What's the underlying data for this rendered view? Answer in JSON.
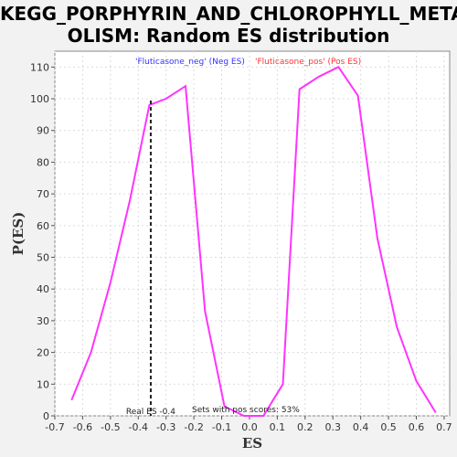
{
  "title": {
    "line1": "KEGG_PORPHYRIN_AND_CHLOROPHYLL_METAB",
    "line2": "OLISM: Random ES distribution"
  },
  "chart_data": {
    "type": "line",
    "xlabel": "ES",
    "ylabel": "P(ES)",
    "xlim": [
      -0.7,
      0.72
    ],
    "ylim": [
      0,
      115
    ],
    "x_ticks": [
      "-0.7",
      "-0.6",
      "-0.5",
      "-0.4",
      "-0.3",
      "-0.2",
      "-0.1",
      "0.0",
      "0.1",
      "0.2",
      "0.3",
      "0.4",
      "0.5",
      "0.6",
      "0.7"
    ],
    "x_tick_values": [
      -0.7,
      -0.6,
      -0.5,
      -0.4,
      -0.3,
      -0.2,
      -0.1,
      0.0,
      0.1,
      0.2,
      0.3,
      0.4,
      0.5,
      0.6,
      0.7
    ],
    "y_ticks": [
      "0",
      "10",
      "20",
      "30",
      "40",
      "50",
      "60",
      "70",
      "80",
      "90",
      "100",
      "110"
    ],
    "y_tick_values": [
      0,
      10,
      20,
      30,
      40,
      50,
      60,
      70,
      80,
      90,
      100,
      110
    ],
    "grid": true,
    "series": [
      {
        "color": "#ff33ff",
        "x": [
          -0.64,
          -0.57,
          -0.5,
          -0.43,
          -0.36,
          -0.3,
          -0.23,
          -0.16,
          -0.09,
          -0.02,
          0.05,
          0.12,
          0.18,
          0.25,
          0.32,
          0.39,
          0.46,
          0.53,
          0.6,
          0.67
        ],
        "y": [
          5,
          20,
          42,
          68,
          98,
          100,
          104,
          33,
          3,
          0,
          0,
          10,
          103,
          107,
          110,
          101,
          56,
          28,
          11,
          1
        ]
      }
    ],
    "real_es": -0.355,
    "real_es_label": "Real ES -0.4",
    "pos_scores_label": "Sets with pos scores: 53%",
    "legend": [
      {
        "label": "'Fluticasone_neg' (Neg ES)",
        "color": "#3333ff"
      },
      {
        "label": "'Fluticasone_pos' (Pos ES)",
        "color": "#ff3333"
      }
    ],
    "legend_placement": "top-center"
  }
}
